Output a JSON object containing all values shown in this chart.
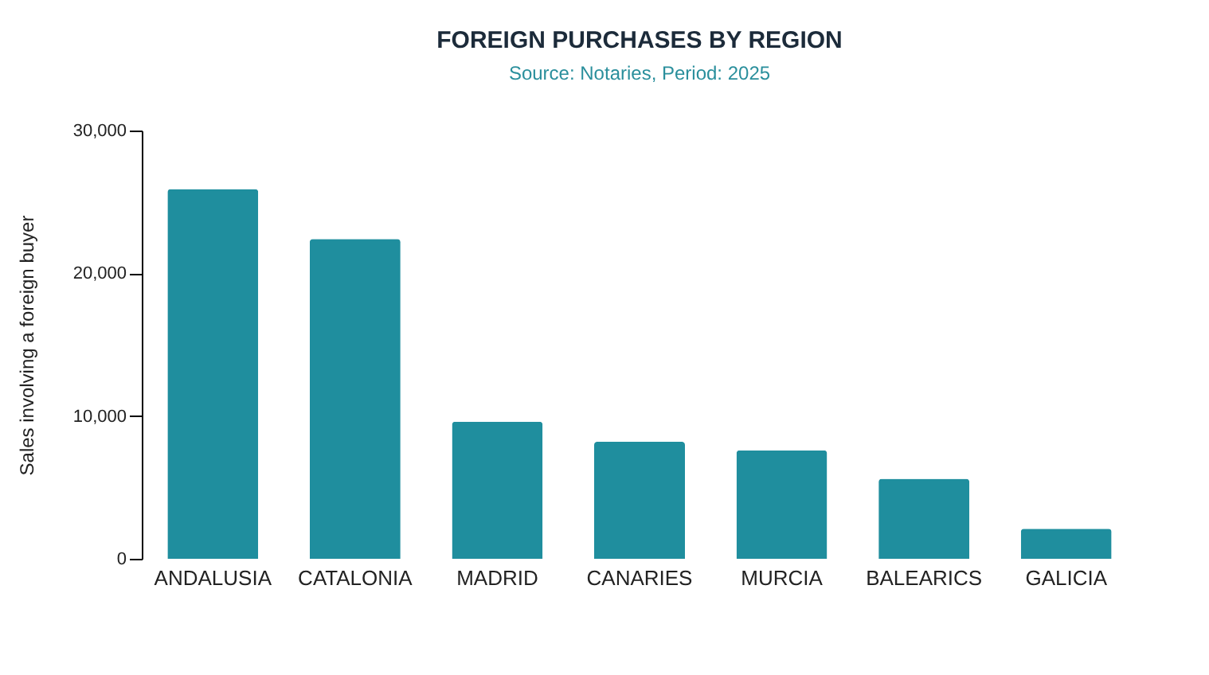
{
  "chart_data": {
    "type": "bar",
    "title": "FOREIGN PURCHASES BY REGION",
    "subtitle": "Source: Notaries, Period: 2025",
    "ylabel": "Sales involving a foreign buyer",
    "categories": [
      "ANDALUSIA",
      "CATALONIA",
      "MADRID",
      "CANARIES",
      "MURCIA",
      "BALEARICS",
      "GALICIA"
    ],
    "values": [
      25900,
      22400,
      9600,
      8200,
      7600,
      5600,
      2100
    ],
    "color": "#1f8e9e",
    "ylim": [
      0,
      30000
    ],
    "yticks": [
      0,
      {
        "value": 10000,
        "label": "10,000"
      },
      {
        "value": 20000,
        "label": "20,000"
      },
      {
        "value": 30000,
        "label": "30,000"
      }
    ],
    "grid": false
  }
}
